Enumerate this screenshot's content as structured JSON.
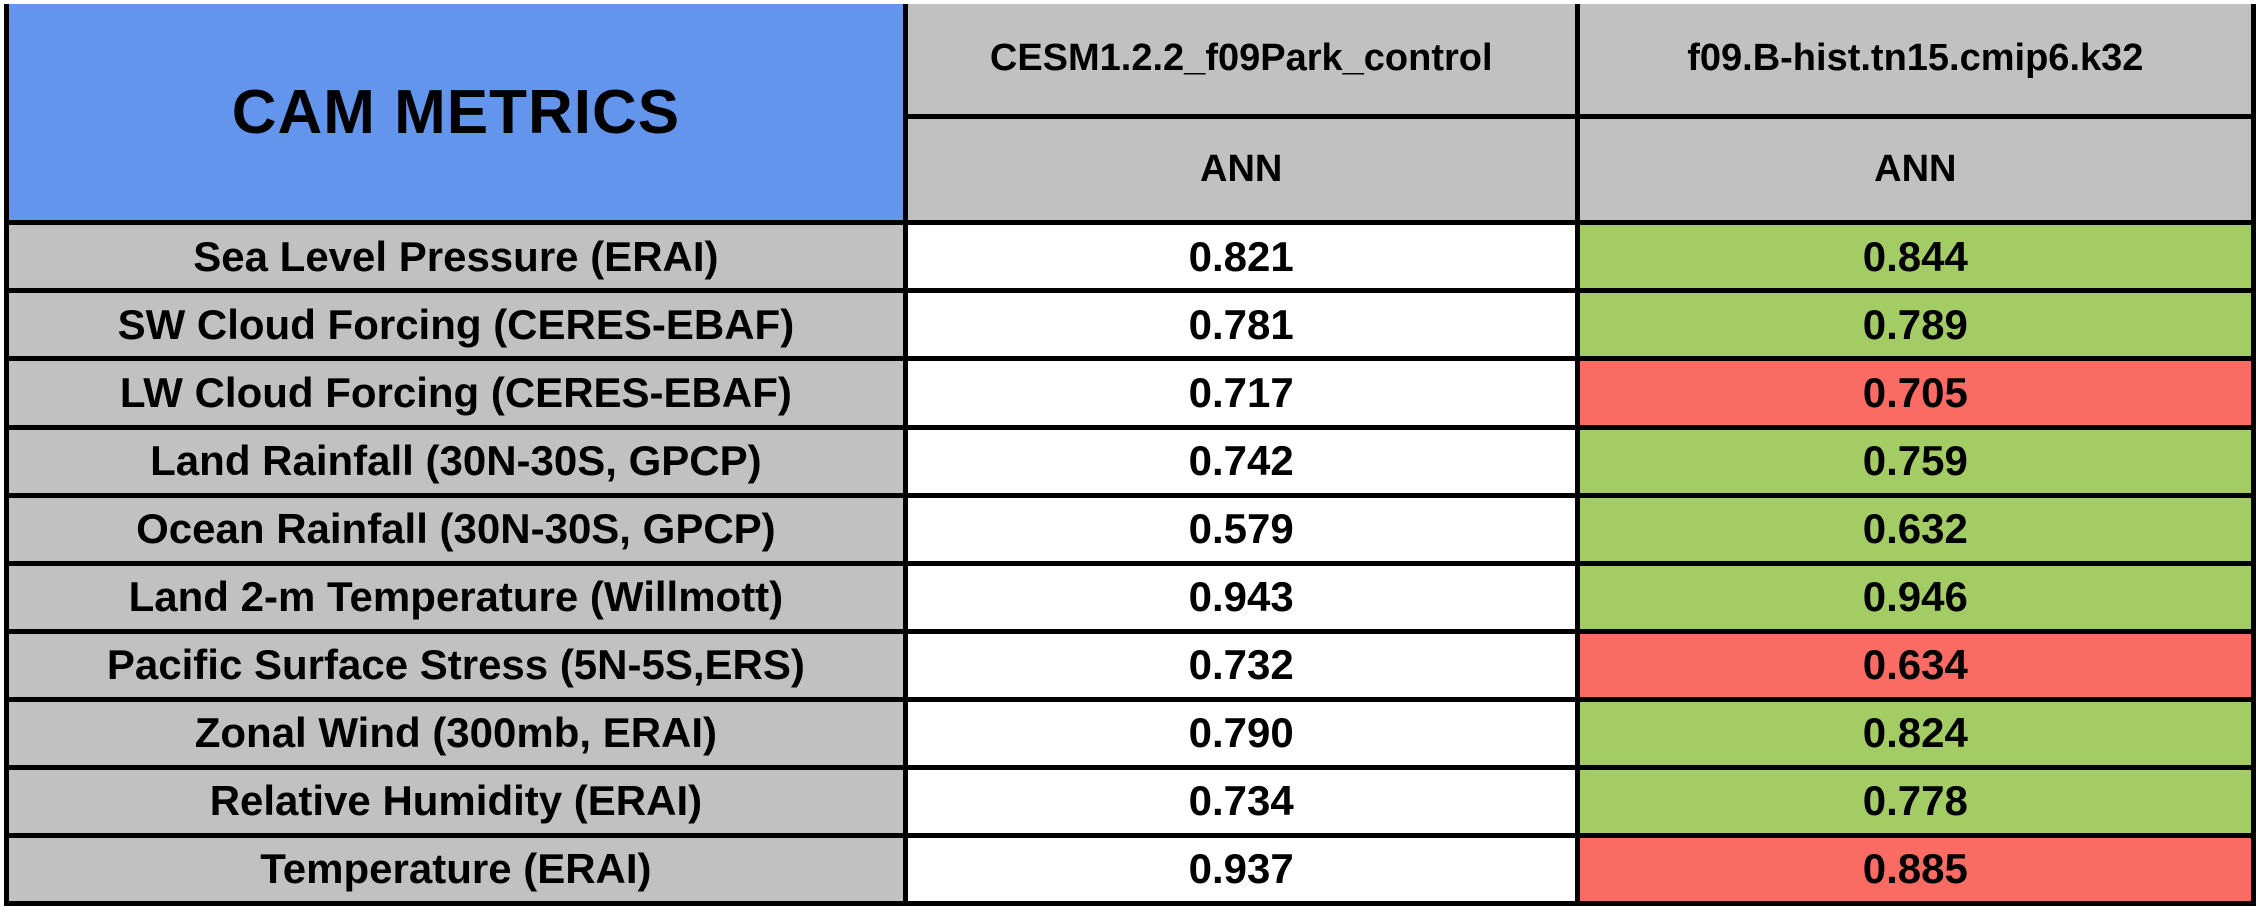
{
  "title": "CAM METRICS",
  "columns": [
    {
      "name": "CESM1.2.2_f09Park_control",
      "season": "ANN"
    },
    {
      "name": "f09.B-hist.tn15.cmip6.k32",
      "season": "ANN"
    }
  ],
  "rows": [
    {
      "metric": "Sea Level Pressure (ERAI)",
      "control": "0.821",
      "experiment": "0.844",
      "experiment_status": "better"
    },
    {
      "metric": "SW Cloud Forcing (CERES-EBAF)",
      "control": "0.781",
      "experiment": "0.789",
      "experiment_status": "better"
    },
    {
      "metric": "LW Cloud Forcing (CERES-EBAF)",
      "control": "0.717",
      "experiment": "0.705",
      "experiment_status": "worse"
    },
    {
      "metric": "Land Rainfall (30N-30S, GPCP)",
      "control": "0.742",
      "experiment": "0.759",
      "experiment_status": "better"
    },
    {
      "metric": "Ocean Rainfall (30N-30S, GPCP)",
      "control": "0.579",
      "experiment": "0.632",
      "experiment_status": "better"
    },
    {
      "metric": "Land 2-m Temperature (Willmott)",
      "control": "0.943",
      "experiment": "0.946",
      "experiment_status": "better"
    },
    {
      "metric": "Pacific Surface Stress (5N-5S,ERS)",
      "control": "0.732",
      "experiment": "0.634",
      "experiment_status": "worse"
    },
    {
      "metric": "Zonal Wind (300mb, ERAI)",
      "control": "0.790",
      "experiment": "0.824",
      "experiment_status": "better"
    },
    {
      "metric": "Relative Humidity (ERAI)",
      "control": "0.734",
      "experiment": "0.778",
      "experiment_status": "better"
    },
    {
      "metric": "Temperature (ERAI)",
      "control": "0.937",
      "experiment": "0.885",
      "experiment_status": "worse"
    }
  ],
  "colors": {
    "header_blue": "#6495ED",
    "cell_gray": "#C1C1C1",
    "better_green": "#A4CC64",
    "worse_red": "#FA6B64",
    "border_black": "#000000"
  },
  "chart_data": {
    "type": "table",
    "title": "CAM METRICS",
    "categories": [
      "Sea Level Pressure (ERAI)",
      "SW Cloud Forcing (CERES-EBAF)",
      "LW Cloud Forcing (CERES-EBAF)",
      "Land Rainfall (30N-30S, GPCP)",
      "Ocean Rainfall (30N-30S, GPCP)",
      "Land 2-m Temperature (Willmott)",
      "Pacific Surface Stress (5N-5S,ERS)",
      "Zonal Wind (300mb, ERAI)",
      "Relative Humidity (ERAI)",
      "Temperature (ERAI)"
    ],
    "series": [
      {
        "name": "CESM1.2.2_f09Park_control",
        "season": "ANN",
        "values": [
          0.821,
          0.781,
          0.717,
          0.742,
          0.579,
          0.943,
          0.732,
          0.79,
          0.734,
          0.937
        ]
      },
      {
        "name": "f09.B-hist.tn15.cmip6.k32",
        "season": "ANN",
        "values": [
          0.844,
          0.789,
          0.705,
          0.759,
          0.632,
          0.946,
          0.634,
          0.824,
          0.778,
          0.885
        ]
      }
    ],
    "cell_highlighting": "experiment column: green = improved vs control, red = degraded vs control, metric is pattern correlation (0-1)"
  }
}
